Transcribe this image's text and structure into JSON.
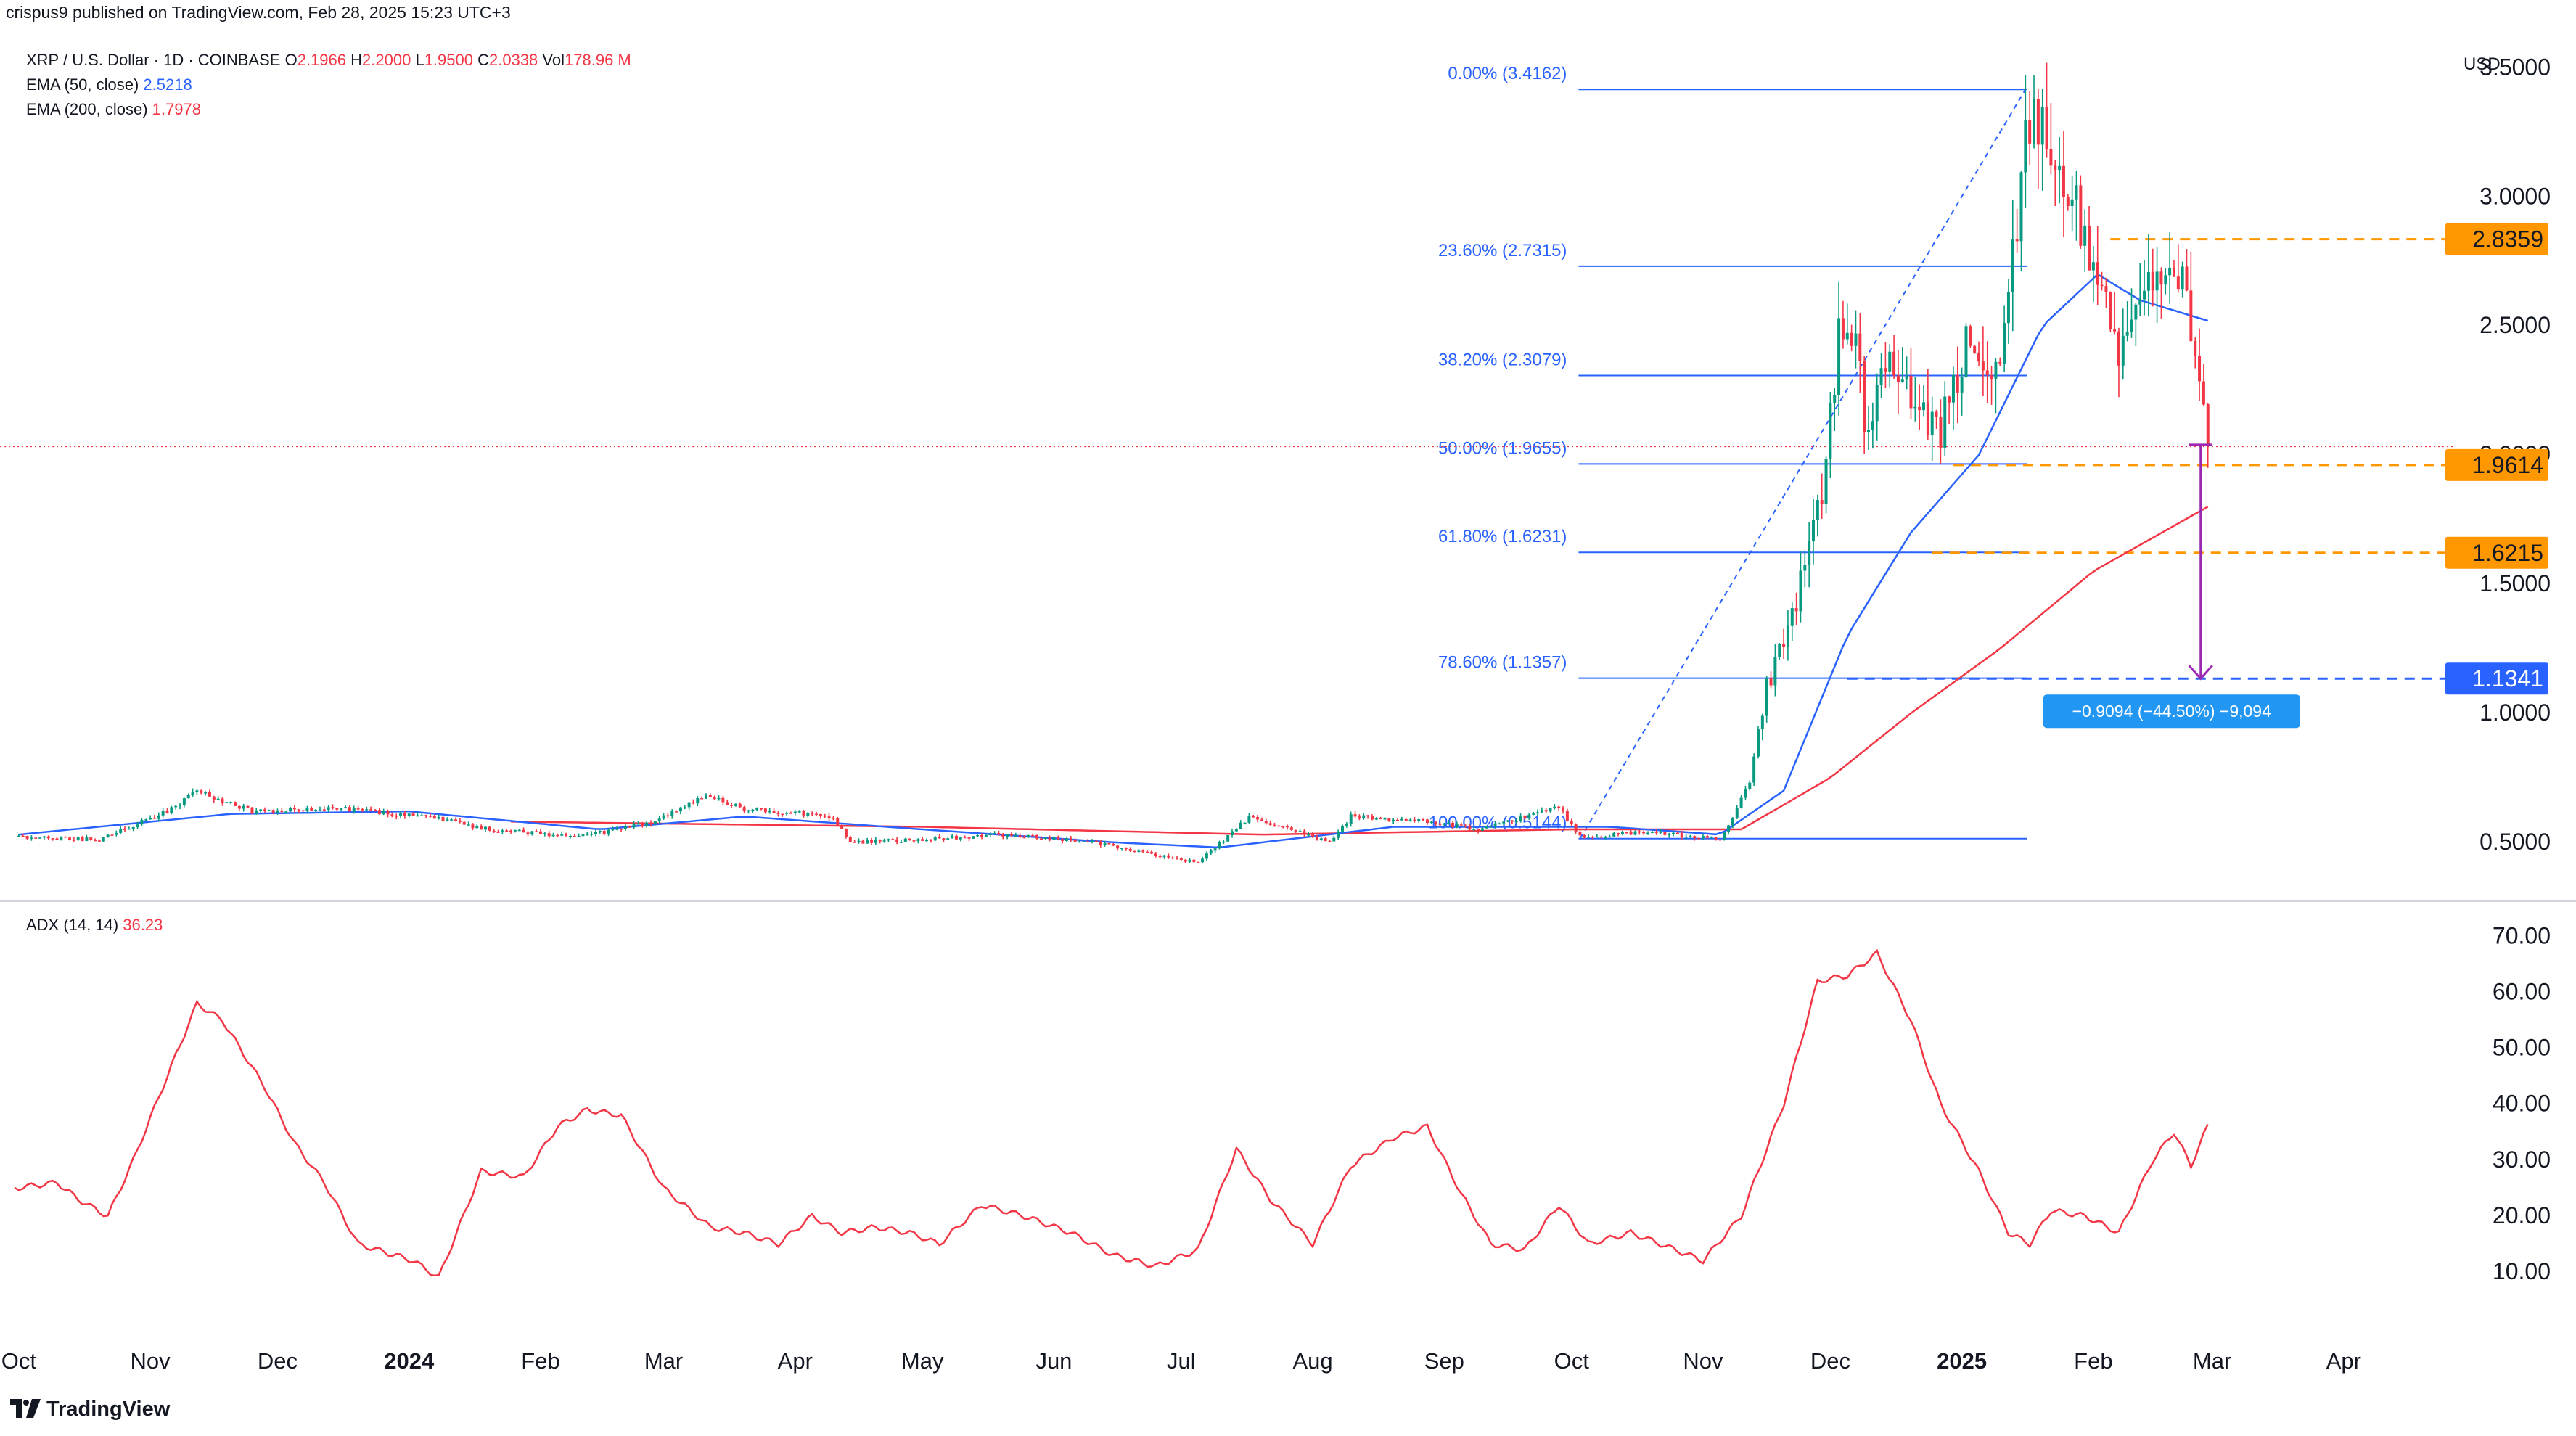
{
  "header": {
    "published": "crispus9 published on TradingView.com, Feb 28, 2025 15:23 UTC+3",
    "symbol": "XRP / U.S. Dollar · 1D · COINBASE",
    "o_key": "O",
    "o_val": "2.1966",
    "h_key": "H",
    "h_val": "2.2000",
    "l_key": "L",
    "l_val": "1.9500",
    "c_key": "C",
    "c_val": "2.0338",
    "vol_key": "Vol",
    "vol_val": "178.96 M",
    "ema50_label": "EMA (50, close)",
    "ema50_val": "2.5218",
    "ema200_label": "EMA (200, close)",
    "ema200_val": "1.7978",
    "adx_label": "ADX (14, 14)",
    "adx_val": "36.23",
    "currency": "USD"
  },
  "footer": {
    "logo_text": "TradingView"
  },
  "colors": {
    "up": "#089981",
    "down": "#f23645",
    "ema50": "#2962ff",
    "ema200": "#f23645",
    "fib": "#2962ff",
    "level": "#ff9800",
    "target": "#2962ff",
    "arrow": "#9c27b0",
    "adx": "#f23645"
  },
  "chart_data": [
    {
      "type": "candlestick",
      "title": "XRP / U.S. Dollar · 1D · COINBASE",
      "ylim": [
        0.3,
        3.65
      ],
      "y_ticks": [
        "0.5000",
        "1.0000",
        "1.5000",
        "2.0000",
        "2.5000",
        "3.0000",
        "3.5000"
      ],
      "x_ticks": [
        "Oct",
        "Nov",
        "Dec",
        "2024",
        "Feb",
        "Mar",
        "Apr",
        "May",
        "Jun",
        "Jul",
        "Aug",
        "Sep",
        "Oct",
        "Nov",
        "Dec",
        "2025",
        "Feb",
        "Mar",
        "Apr"
      ],
      "price_anchors": [
        [
          "2023-10-01",
          0.52
        ],
        [
          "2023-10-20",
          0.51
        ],
        [
          "2023-11-05",
          0.62
        ],
        [
          "2023-11-12",
          0.7
        ],
        [
          "2023-11-25",
          0.62
        ],
        [
          "2023-12-15",
          0.63
        ],
        [
          "2024-01-05",
          0.6
        ],
        [
          "2024-01-20",
          0.55
        ],
        [
          "2024-02-10",
          0.52
        ],
        [
          "2024-02-28",
          0.58
        ],
        [
          "2024-03-11",
          0.68
        ],
        [
          "2024-03-20",
          0.63
        ],
        [
          "2024-04-10",
          0.6
        ],
        [
          "2024-04-14",
          0.5
        ],
        [
          "2024-04-30",
          0.51
        ],
        [
          "2024-05-20",
          0.53
        ],
        [
          "2024-06-10",
          0.5
        ],
        [
          "2024-07-05",
          0.42
        ],
        [
          "2024-07-17",
          0.6
        ],
        [
          "2024-08-05",
          0.5
        ],
        [
          "2024-08-10",
          0.6
        ],
        [
          "2024-08-28",
          0.58
        ],
        [
          "2024-09-10",
          0.55
        ],
        [
          "2024-09-28",
          0.64
        ],
        [
          "2024-10-03",
          0.52
        ],
        [
          "2024-10-20",
          0.54
        ],
        [
          "2024-11-05",
          0.51
        ],
        [
          "2024-11-12",
          0.73
        ],
        [
          "2024-11-16",
          1.1
        ],
        [
          "2024-11-23",
          1.45
        ],
        [
          "2024-11-30",
          1.9
        ],
        [
          "2024-12-03",
          2.55
        ],
        [
          "2024-12-07",
          2.4
        ],
        [
          "2024-12-10",
          2.05
        ],
        [
          "2024-12-15",
          2.45
        ],
        [
          "2024-12-20",
          2.2
        ],
        [
          "2024-12-27",
          2.1
        ],
        [
          "2025-01-02",
          2.4
        ],
        [
          "2025-01-08",
          2.3
        ],
        [
          "2025-01-12",
          2.55
        ],
        [
          "2025-01-16",
          3.3
        ],
        [
          "2025-01-25",
          3.1
        ],
        [
          "2025-02-01",
          2.8
        ],
        [
          "2025-02-03",
          2.6
        ],
        [
          "2025-02-08",
          2.4
        ],
        [
          "2025-02-14",
          2.6
        ],
        [
          "2025-02-18",
          2.75
        ],
        [
          "2025-02-23",
          2.6
        ],
        [
          "2025-02-26",
          2.2
        ],
        [
          "2025-02-28",
          2.03
        ]
      ],
      "last_candle": {
        "open": 2.1966,
        "high": 2.2,
        "low": 1.95,
        "close": 2.0338
      },
      "ema50_anchors": [
        [
          "2023-10-01",
          0.53
        ],
        [
          "2023-11-20",
          0.61
        ],
        [
          "2024-01-01",
          0.62
        ],
        [
          "2024-02-15",
          0.55
        ],
        [
          "2024-03-20",
          0.6
        ],
        [
          "2024-05-01",
          0.55
        ],
        [
          "2024-06-15",
          0.5
        ],
        [
          "2024-07-10",
          0.48
        ],
        [
          "2024-08-20",
          0.56
        ],
        [
          "2024-10-10",
          0.56
        ],
        [
          "2024-11-05",
          0.53
        ],
        [
          "2024-11-20",
          0.7
        ],
        [
          "2024-12-05",
          1.3
        ],
        [
          "2024-12-20",
          1.7
        ],
        [
          "2025-01-05",
          2.0
        ],
        [
          "2025-01-20",
          2.5
        ],
        [
          "2025-02-02",
          2.7
        ],
        [
          "2025-02-12",
          2.6
        ],
        [
          "2025-02-28",
          2.52
        ]
      ],
      "ema200_anchors": [
        [
          "2024-01-25",
          0.58
        ],
        [
          "2024-05-01",
          0.56
        ],
        [
          "2024-07-20",
          0.53
        ],
        [
          "2024-10-01",
          0.55
        ],
        [
          "2024-11-10",
          0.55
        ],
        [
          "2024-12-01",
          0.75
        ],
        [
          "2024-12-20",
          1.0
        ],
        [
          "2025-01-10",
          1.25
        ],
        [
          "2025-02-01",
          1.55
        ],
        [
          "2025-02-28",
          1.8
        ]
      ],
      "fib_anchor_low": {
        "date": "2024-10-03",
        "price": 0.5144
      },
      "fib_anchor_high": {
        "date": "2025-01-16",
        "price": 3.4162
      },
      "fib_levels": [
        {
          "label": "0.00% (3.4162)",
          "price": 3.4162
        },
        {
          "label": "23.60% (2.7315)",
          "price": 2.7315
        },
        {
          "label": "38.20% (2.3079)",
          "price": 2.3079
        },
        {
          "label": "50.00% (1.9655)",
          "price": 1.9655
        },
        {
          "label": "61.80% (1.6231)",
          "price": 1.6231
        },
        {
          "label": "78.60% (1.1357)",
          "price": 1.1357
        },
        {
          "label": "100.00% (0.5144)",
          "price": 0.5144
        }
      ],
      "horizontal_levels": [
        {
          "label": "2.8359",
          "price": 2.8359,
          "from": "2025-02-05"
        },
        {
          "label": "1.9614",
          "price": 1.9614,
          "from": "2024-12-30"
        },
        {
          "label": "1.6215",
          "price": 1.6215,
          "from": "2024-12-25"
        }
      ],
      "target_level": {
        "label": "1.1341",
        "price": 1.1341,
        "from": "2024-12-05"
      },
      "current_price_line": 2.0338,
      "measure": {
        "date": "2025-02-28",
        "from_price": 2.04,
        "to_price": 1.1341,
        "label": "−0.9094 (−44.50%) −9,094"
      }
    },
    {
      "type": "line",
      "title": "ADX (14, 14)",
      "ylim": [
        0,
        75
      ],
      "y_ticks": [
        "10.00",
        "20.00",
        "30.00",
        "40.00",
        "50.00",
        "60.00",
        "70.00"
      ],
      "series": [
        {
          "name": "ADX (14, 14)",
          "points": [
            [
              "2023-09-30",
              25
            ],
            [
              "2023-10-10",
              26
            ],
            [
              "2023-10-15",
              23
            ],
            [
              "2023-10-22",
              20
            ],
            [
              "2023-10-28",
              30
            ],
            [
              "2023-11-05",
              45
            ],
            [
              "2023-11-12",
              58
            ],
            [
              "2023-11-18",
              55
            ],
            [
              "2023-11-28",
              43
            ],
            [
              "2023-12-05",
              33
            ],
            [
              "2023-12-12",
              26
            ],
            [
              "2023-12-20",
              15
            ],
            [
              "2024-01-02",
              12
            ],
            [
              "2024-01-08",
              9
            ],
            [
              "2024-01-18",
              28
            ],
            [
              "2024-01-28",
              27
            ],
            [
              "2024-02-05",
              36
            ],
            [
              "2024-02-12",
              39
            ],
            [
              "2024-02-20",
              38
            ],
            [
              "2024-03-01",
              25
            ],
            [
              "2024-03-12",
              18
            ],
            [
              "2024-03-20",
              17
            ],
            [
              "2024-03-28",
              15
            ],
            [
              "2024-04-05",
              20
            ],
            [
              "2024-04-12",
              17
            ],
            [
              "2024-04-20",
              18
            ],
            [
              "2024-04-28",
              17
            ],
            [
              "2024-05-05",
              15
            ],
            [
              "2024-05-15",
              22
            ],
            [
              "2024-05-25",
              20
            ],
            [
              "2024-06-05",
              17
            ],
            [
              "2024-06-15",
              13
            ],
            [
              "2024-06-25",
              11
            ],
            [
              "2024-07-05",
              14
            ],
            [
              "2024-07-14",
              32
            ],
            [
              "2024-07-22",
              23
            ],
            [
              "2024-08-01",
              15
            ],
            [
              "2024-08-10",
              29
            ],
            [
              "2024-08-20",
              34
            ],
            [
              "2024-08-28",
              36
            ],
            [
              "2024-09-05",
              24
            ],
            [
              "2024-09-12",
              15
            ],
            [
              "2024-09-20",
              14
            ],
            [
              "2024-09-28",
              22
            ],
            [
              "2024-10-05",
              15
            ],
            [
              "2024-10-15",
              17
            ],
            [
              "2024-10-22",
              15
            ],
            [
              "2024-11-01",
              12
            ],
            [
              "2024-11-10",
              20
            ],
            [
              "2024-11-20",
              40
            ],
            [
              "2024-11-28",
              62
            ],
            [
              "2024-12-05",
              63
            ],
            [
              "2024-12-12",
              67
            ],
            [
              "2024-12-20",
              55
            ],
            [
              "2024-12-27",
              40
            ],
            [
              "2025-01-05",
              28
            ],
            [
              "2025-01-12",
              17
            ],
            [
              "2025-01-17",
              15
            ],
            [
              "2025-01-22",
              21
            ],
            [
              "2025-01-30",
              20
            ],
            [
              "2025-02-07",
              17
            ],
            [
              "2025-02-15",
              30
            ],
            [
              "2025-02-20",
              35
            ],
            [
              "2025-02-24",
              29
            ],
            [
              "2025-02-28",
              36.23
            ]
          ]
        }
      ]
    }
  ]
}
